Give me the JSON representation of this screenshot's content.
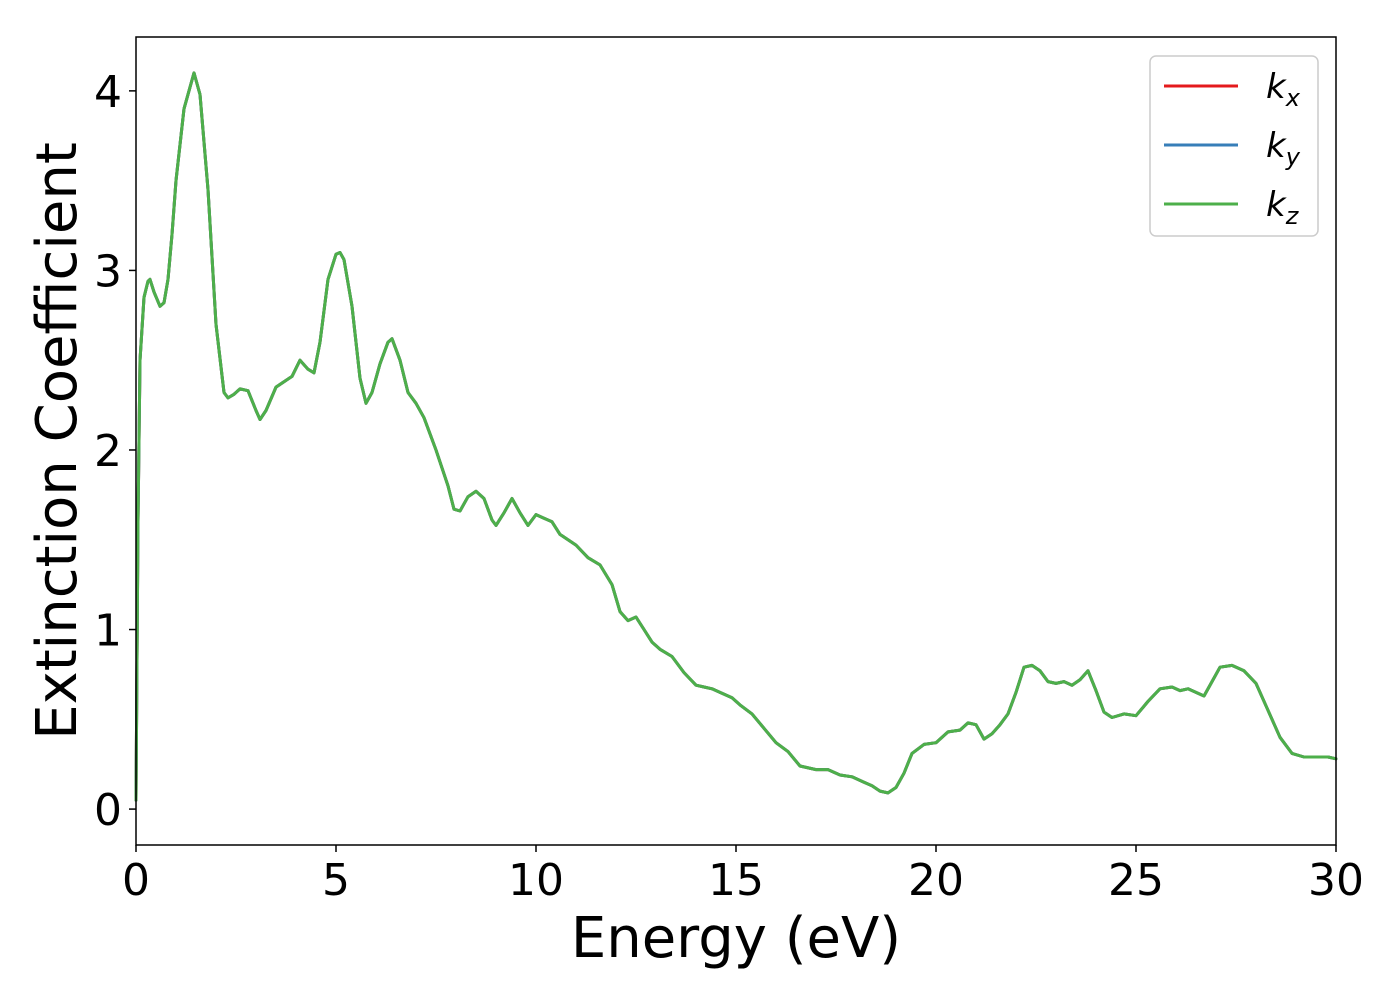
{
  "chart_data": {
    "type": "line",
    "title": "",
    "xlabel": "Energy (eV)",
    "ylabel": "Extinction Coefficient",
    "xlim": [
      0,
      30
    ],
    "ylim": [
      -0.2,
      4.3
    ],
    "xticks": [
      0,
      5,
      10,
      15,
      20,
      25,
      30
    ],
    "yticks": [
      0,
      1,
      2,
      3,
      4
    ],
    "grid": false,
    "legend_position": "top-right",
    "x": [
      0.0,
      0.05,
      0.1,
      0.2,
      0.3,
      0.35,
      0.45,
      0.6,
      0.7,
      0.8,
      0.9,
      1.0,
      1.2,
      1.45,
      1.6,
      1.8,
      2.0,
      2.2,
      2.3,
      2.45,
      2.6,
      2.8,
      3.0,
      3.1,
      3.25,
      3.5,
      3.7,
      3.9,
      4.1,
      4.3,
      4.45,
      4.6,
      4.8,
      5.0,
      5.1,
      5.2,
      5.4,
      5.6,
      5.75,
      5.9,
      6.1,
      6.3,
      6.4,
      6.6,
      6.8,
      7.0,
      7.2,
      7.5,
      7.8,
      7.95,
      8.1,
      8.3,
      8.5,
      8.7,
      8.9,
      9.0,
      9.2,
      9.4,
      9.6,
      9.8,
      10.0,
      10.2,
      10.4,
      10.6,
      10.8,
      11.0,
      11.3,
      11.6,
      11.9,
      12.1,
      12.3,
      12.5,
      12.7,
      12.9,
      13.1,
      13.4,
      13.7,
      14.0,
      14.2,
      14.4,
      14.6,
      14.9,
      15.1,
      15.4,
      15.7,
      16.0,
      16.3,
      16.6,
      17.0,
      17.3,
      17.6,
      17.9,
      18.2,
      18.4,
      18.6,
      18.8,
      19.0,
      19.2,
      19.4,
      19.7,
      20.0,
      20.3,
      20.6,
      20.8,
      21.0,
      21.2,
      21.4,
      21.6,
      21.8,
      22.0,
      22.2,
      22.4,
      22.6,
      22.8,
      23.0,
      23.2,
      23.4,
      23.6,
      23.8,
      24.0,
      24.2,
      24.4,
      24.7,
      25.0,
      25.3,
      25.6,
      25.9,
      26.1,
      26.3,
      26.5,
      26.7,
      26.9,
      27.1,
      27.4,
      27.7,
      28.0,
      28.3,
      28.6,
      28.9,
      29.2,
      29.5,
      29.8,
      30.0
    ],
    "series": [
      {
        "name": "k_x",
        "color": "#e41a1c",
        "y": [
          0.05,
          1.6,
          2.5,
          2.85,
          2.94,
          2.95,
          2.88,
          2.8,
          2.82,
          2.95,
          3.2,
          3.5,
          3.9,
          4.1,
          3.98,
          3.45,
          2.7,
          2.32,
          2.29,
          2.31,
          2.34,
          2.33,
          2.22,
          2.17,
          2.22,
          2.35,
          2.38,
          2.41,
          2.5,
          2.45,
          2.43,
          2.6,
          2.95,
          3.09,
          3.1,
          3.06,
          2.8,
          2.4,
          2.26,
          2.32,
          2.48,
          2.6,
          2.62,
          2.5,
          2.32,
          2.26,
          2.18,
          2.0,
          1.8,
          1.67,
          1.66,
          1.74,
          1.77,
          1.73,
          1.61,
          1.58,
          1.65,
          1.73,
          1.65,
          1.58,
          1.64,
          1.62,
          1.6,
          1.53,
          1.5,
          1.47,
          1.4,
          1.36,
          1.25,
          1.1,
          1.05,
          1.07,
          1.0,
          0.93,
          0.89,
          0.85,
          0.76,
          0.69,
          0.68,
          0.67,
          0.65,
          0.62,
          0.58,
          0.53,
          0.45,
          0.37,
          0.32,
          0.24,
          0.22,
          0.22,
          0.19,
          0.18,
          0.15,
          0.13,
          0.1,
          0.09,
          0.12,
          0.2,
          0.31,
          0.36,
          0.37,
          0.43,
          0.44,
          0.48,
          0.47,
          0.39,
          0.42,
          0.47,
          0.53,
          0.65,
          0.79,
          0.8,
          0.77,
          0.71,
          0.7,
          0.71,
          0.69,
          0.72,
          0.77,
          0.66,
          0.54,
          0.51,
          0.53,
          0.52,
          0.6,
          0.67,
          0.68,
          0.66,
          0.67,
          0.65,
          0.63,
          0.71,
          0.79,
          0.8,
          0.77,
          0.7,
          0.55,
          0.4,
          0.31,
          0.29,
          0.29,
          0.29,
          0.28
        ]
      },
      {
        "name": "k_y",
        "color": "#377eb8",
        "y": [
          0.05,
          1.6,
          2.5,
          2.85,
          2.94,
          2.95,
          2.88,
          2.8,
          2.82,
          2.95,
          3.2,
          3.5,
          3.9,
          4.1,
          3.98,
          3.45,
          2.7,
          2.32,
          2.29,
          2.31,
          2.34,
          2.33,
          2.22,
          2.17,
          2.22,
          2.35,
          2.38,
          2.41,
          2.5,
          2.45,
          2.43,
          2.6,
          2.95,
          3.09,
          3.1,
          3.06,
          2.8,
          2.4,
          2.26,
          2.32,
          2.48,
          2.6,
          2.62,
          2.5,
          2.32,
          2.26,
          2.18,
          2.0,
          1.8,
          1.67,
          1.66,
          1.74,
          1.77,
          1.73,
          1.61,
          1.58,
          1.65,
          1.73,
          1.65,
          1.58,
          1.64,
          1.62,
          1.6,
          1.53,
          1.5,
          1.47,
          1.4,
          1.36,
          1.25,
          1.1,
          1.05,
          1.07,
          1.0,
          0.93,
          0.89,
          0.85,
          0.76,
          0.69,
          0.68,
          0.67,
          0.65,
          0.62,
          0.58,
          0.53,
          0.45,
          0.37,
          0.32,
          0.24,
          0.22,
          0.22,
          0.19,
          0.18,
          0.15,
          0.13,
          0.1,
          0.09,
          0.12,
          0.2,
          0.31,
          0.36,
          0.37,
          0.43,
          0.44,
          0.48,
          0.47,
          0.39,
          0.42,
          0.47,
          0.53,
          0.65,
          0.79,
          0.8,
          0.77,
          0.71,
          0.7,
          0.71,
          0.69,
          0.72,
          0.77,
          0.66,
          0.54,
          0.51,
          0.53,
          0.52,
          0.6,
          0.67,
          0.68,
          0.66,
          0.67,
          0.65,
          0.63,
          0.71,
          0.79,
          0.8,
          0.77,
          0.7,
          0.55,
          0.4,
          0.31,
          0.29,
          0.29,
          0.29,
          0.28
        ]
      },
      {
        "name": "k_z",
        "color": "#4daf4a",
        "y": [
          0.05,
          1.6,
          2.5,
          2.85,
          2.94,
          2.95,
          2.88,
          2.8,
          2.82,
          2.95,
          3.2,
          3.5,
          3.9,
          4.1,
          3.98,
          3.45,
          2.7,
          2.32,
          2.29,
          2.31,
          2.34,
          2.33,
          2.22,
          2.17,
          2.22,
          2.35,
          2.38,
          2.41,
          2.5,
          2.45,
          2.43,
          2.6,
          2.95,
          3.09,
          3.1,
          3.06,
          2.8,
          2.4,
          2.26,
          2.32,
          2.48,
          2.6,
          2.62,
          2.5,
          2.32,
          2.26,
          2.18,
          2.0,
          1.8,
          1.67,
          1.66,
          1.74,
          1.77,
          1.73,
          1.61,
          1.58,
          1.65,
          1.73,
          1.65,
          1.58,
          1.64,
          1.62,
          1.6,
          1.53,
          1.5,
          1.47,
          1.4,
          1.36,
          1.25,
          1.1,
          1.05,
          1.07,
          1.0,
          0.93,
          0.89,
          0.85,
          0.76,
          0.69,
          0.68,
          0.67,
          0.65,
          0.62,
          0.58,
          0.53,
          0.45,
          0.37,
          0.32,
          0.24,
          0.22,
          0.22,
          0.19,
          0.18,
          0.15,
          0.13,
          0.1,
          0.09,
          0.12,
          0.2,
          0.31,
          0.36,
          0.37,
          0.43,
          0.44,
          0.48,
          0.47,
          0.39,
          0.42,
          0.47,
          0.53,
          0.65,
          0.79,
          0.8,
          0.77,
          0.71,
          0.7,
          0.71,
          0.69,
          0.72,
          0.77,
          0.66,
          0.54,
          0.51,
          0.53,
          0.52,
          0.6,
          0.67,
          0.68,
          0.66,
          0.67,
          0.65,
          0.63,
          0.71,
          0.79,
          0.8,
          0.77,
          0.7,
          0.55,
          0.4,
          0.31,
          0.29,
          0.29,
          0.29,
          0.28
        ]
      }
    ],
    "legend": [
      {
        "base": "k",
        "sub": "x",
        "color": "#e41a1c"
      },
      {
        "base": "k",
        "sub": "y",
        "color": "#377eb8"
      },
      {
        "base": "k",
        "sub": "z",
        "color": "#4daf4a"
      }
    ]
  }
}
